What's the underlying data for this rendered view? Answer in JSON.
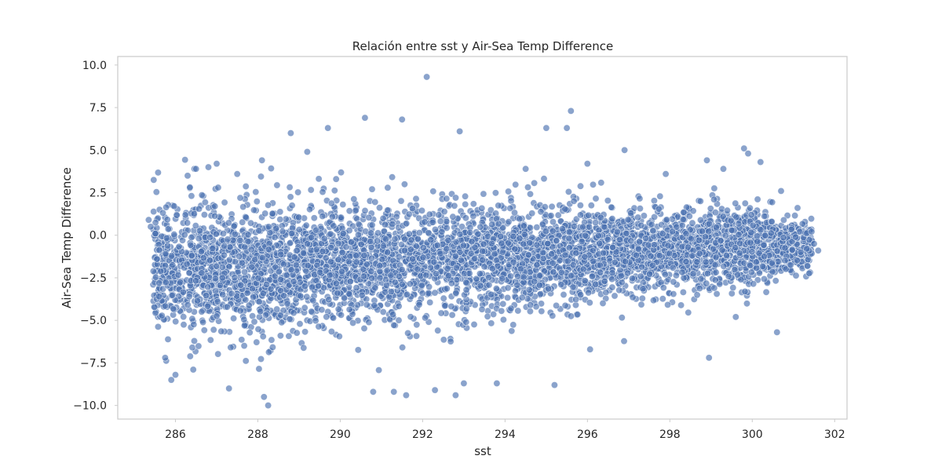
{
  "chart_data": {
    "type": "scatter",
    "title": "Relación entre sst y Air-Sea Temp Difference",
    "xlabel": "sst",
    "ylabel": "Air-Sea Temp Difference",
    "xlim": [
      284.6,
      302.3
    ],
    "ylim": [
      -10.8,
      10.5
    ],
    "x_ticks": [
      286,
      288,
      290,
      292,
      294,
      296,
      298,
      300,
      302
    ],
    "x_tick_labels": [
      "286",
      "288",
      "290",
      "292",
      "294",
      "296",
      "298",
      "300",
      "302"
    ],
    "y_ticks": [
      10.0,
      7.5,
      5.0,
      2.5,
      0.0,
      -2.5,
      -5.0,
      -7.5,
      -10.0
    ],
    "y_tick_labels": [
      "10.0",
      "7.5",
      "5.0",
      "2.5",
      "0.0",
      "−2.5",
      "−5.0",
      "−7.5",
      "−10.0"
    ],
    "grid": false,
    "legend": "none",
    "colors": {
      "point": "#4c72b0",
      "point_edge": "#ffffff",
      "frame": "#cccccc",
      "text": "#262626"
    },
    "series": [
      {
        "x_range": [
          285.3,
          301.6
        ],
        "approx_mean_y": -1.3,
        "points": [
          [
            285.35,
            0.9
          ],
          [
            285.4,
            0.5
          ],
          [
            285.55,
            -1.4
          ],
          [
            285.6,
            -3.6
          ],
          [
            285.75,
            -7.2
          ],
          [
            285.9,
            -8.5
          ],
          [
            286.0,
            -8.2
          ],
          [
            286.5,
            3.9
          ],
          [
            286.8,
            4.0
          ],
          [
            287.0,
            4.2
          ],
          [
            287.3,
            -9.0
          ],
          [
            287.5,
            3.6
          ],
          [
            288.1,
            4.4
          ],
          [
            288.15,
            -9.5
          ],
          [
            288.25,
            -10.0
          ],
          [
            288.8,
            6.0
          ],
          [
            289.7,
            6.3
          ],
          [
            289.9,
            3.3
          ],
          [
            290.6,
            6.9
          ],
          [
            290.8,
            -9.2
          ],
          [
            291.3,
            -9.2
          ],
          [
            291.5,
            6.8
          ],
          [
            291.6,
            -9.4
          ],
          [
            292.1,
            9.3
          ],
          [
            292.3,
            -9.1
          ],
          [
            292.9,
            6.1
          ],
          [
            292.8,
            -9.4
          ],
          [
            293.0,
            -8.7
          ],
          [
            293.8,
            -8.7
          ],
          [
            294.5,
            3.9
          ],
          [
            295.0,
            6.3
          ],
          [
            295.2,
            -8.8
          ],
          [
            295.5,
            6.3
          ],
          [
            295.6,
            7.3
          ],
          [
            296.0,
            4.2
          ],
          [
            296.9,
            5.0
          ],
          [
            297.9,
            3.6
          ],
          [
            298.9,
            4.4
          ],
          [
            298.95,
            -7.2
          ],
          [
            299.3,
            3.9
          ],
          [
            299.8,
            5.1
          ],
          [
            299.9,
            4.8
          ],
          [
            300.2,
            4.3
          ],
          [
            300.7,
            2.6
          ],
          [
            301.1,
            1.6
          ],
          [
            301.5,
            -0.5
          ],
          [
            301.6,
            -0.9
          ],
          [
            289.2,
            4.9
          ],
          [
            299.6,
            -4.8
          ],
          [
            300.6,
            -5.7
          ]
        ]
      }
    ]
  }
}
